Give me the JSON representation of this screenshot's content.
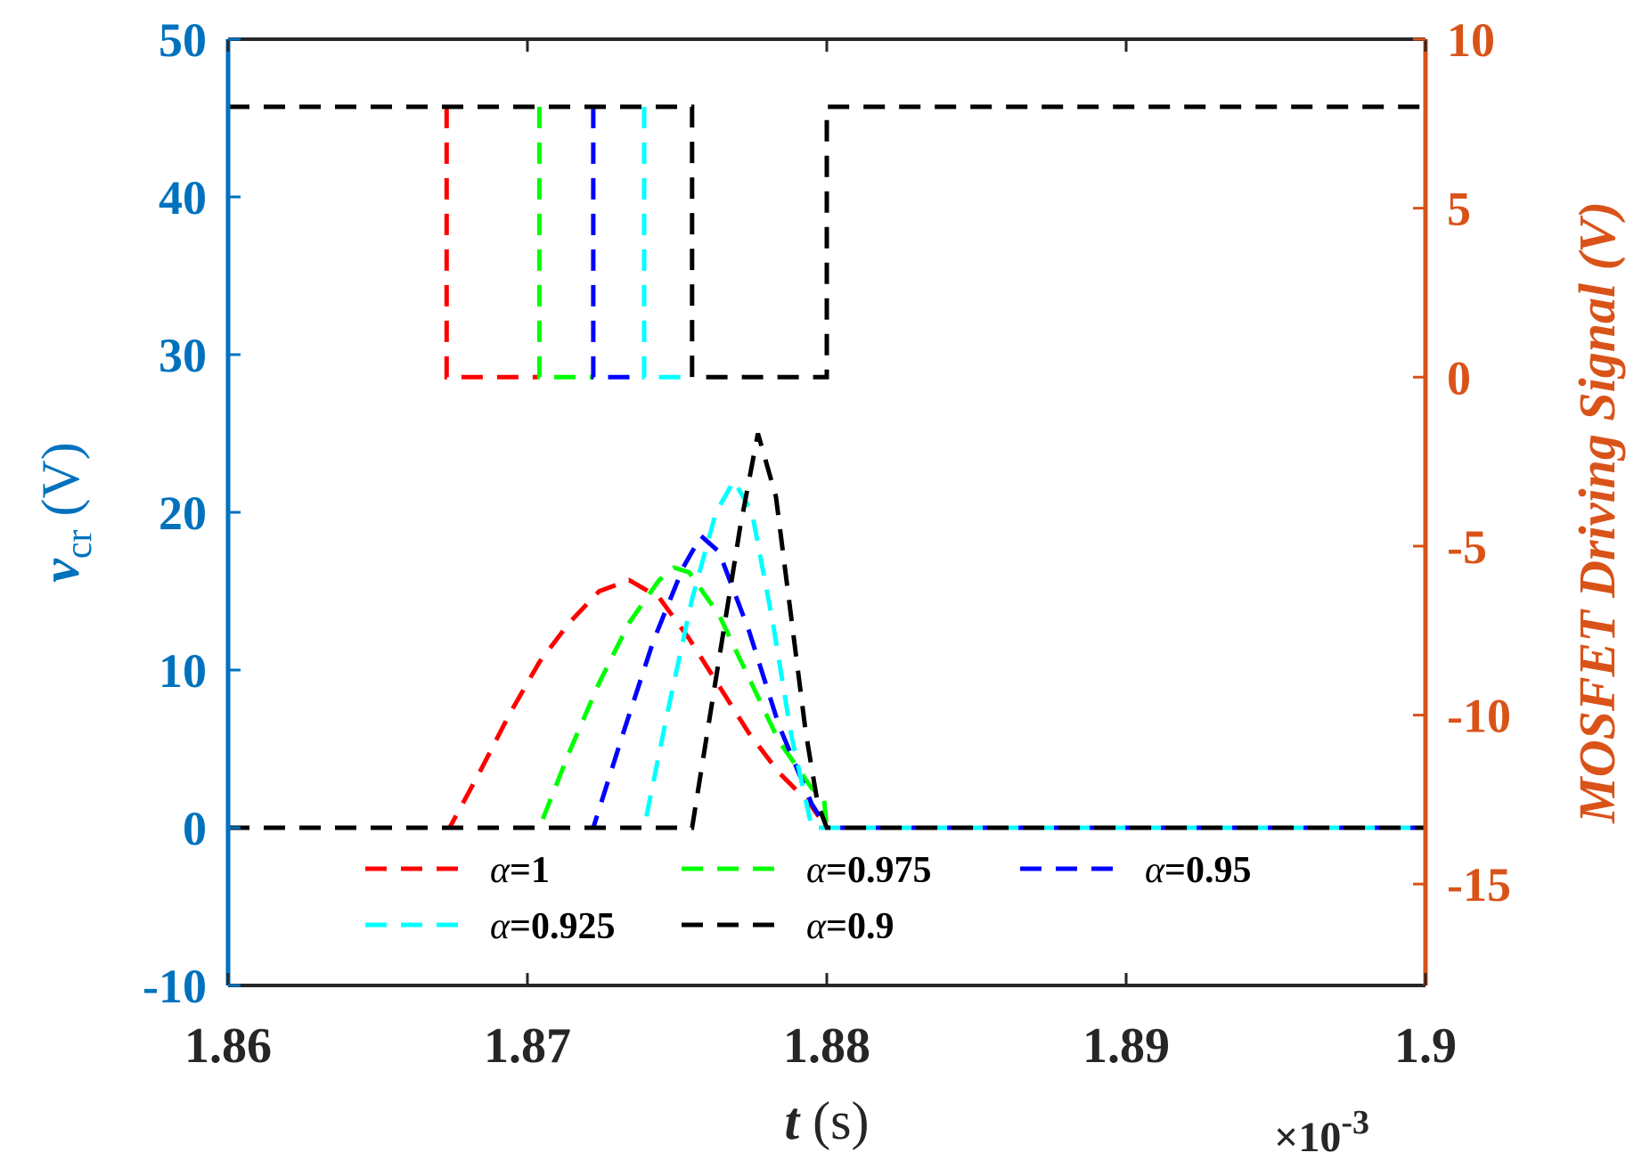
{
  "chart_data": {
    "type": "line",
    "x_axis": {
      "label_var": "t",
      "label_unit": " (s)",
      "range": [
        1.86,
        1.9
      ],
      "ticks": [
        1.86,
        1.87,
        1.88,
        1.89,
        1.9
      ],
      "tick_labels": [
        "1.86",
        "1.87",
        "1.88",
        "1.89",
        "1.9"
      ],
      "exponent_base": "×10",
      "exponent_power": "-3"
    },
    "y_left": {
      "label_var": "v",
      "label_sub": "cr",
      "label_unit": " (V)",
      "range": [
        -10,
        50
      ],
      "ticks": [
        -10,
        0,
        10,
        20,
        30,
        40,
        50
      ],
      "tick_labels": [
        "-10",
        "0",
        "10",
        "20",
        "30",
        "40",
        "50"
      ],
      "color": "#0072BD"
    },
    "y_right": {
      "label": "MOSFET Driving Signal (V)",
      "range": [
        -18,
        10
      ],
      "ticks": [
        -15,
        -10,
        -5,
        0,
        5,
        10
      ],
      "tick_labels": [
        "-15",
        "-10",
        "-5",
        "0",
        "5",
        "10"
      ],
      "color": "#D95319"
    },
    "series": [
      {
        "name": "α=1",
        "alpha_value": "1",
        "color": "#FF0000",
        "vcr": {
          "x": [
            1.86,
            1.8674,
            1.8684,
            1.8694,
            1.8704,
            1.8714,
            1.8724,
            1.8734,
            1.8744,
            1.8754,
            1.8764,
            1.8774,
            1.8784,
            1.8794,
            1.88,
            1.9
          ],
          "y": [
            0,
            0,
            3.5,
            7.2,
            10.5,
            13.0,
            15.0,
            15.7,
            14.6,
            12.0,
            9.0,
            6.0,
            3.5,
            1.6,
            0,
            0
          ]
        },
        "drive": {
          "x": [
            1.8673,
            1.8673,
            1.8704
          ],
          "y": [
            8,
            0,
            0
          ]
        }
      },
      {
        "name": "α=0.975",
        "alpha_value": "0.975",
        "color": "#00FF00",
        "vcr": {
          "x": [
            1.86,
            1.8704,
            1.8714,
            1.8724,
            1.8734,
            1.8744,
            1.8749,
            1.8754,
            1.8764,
            1.8774,
            1.8784,
            1.8795,
            1.8799,
            1.88,
            1.9
          ],
          "y": [
            0,
            0,
            4.8,
            9.2,
            13.0,
            15.7,
            16.5,
            16.2,
            13.5,
            9.5,
            5.5,
            2.5,
            2.0,
            0,
            0
          ]
        },
        "drive": {
          "x": [
            1.8704,
            1.8704,
            1.8722
          ],
          "y": [
            8,
            0,
            0
          ]
        }
      },
      {
        "name": "α=0.95",
        "alpha_value": "0.95",
        "color": "#0000FF",
        "vcr": {
          "x": [
            1.86,
            1.8722,
            1.8732,
            1.8742,
            1.8752,
            1.8758,
            1.8764,
            1.8774,
            1.8784,
            1.8795,
            1.88,
            1.9
          ],
          "y": [
            0,
            0,
            6.0,
            11.8,
            16.5,
            18.5,
            17.5,
            12.5,
            6.5,
            1.5,
            0,
            0
          ]
        },
        "drive": {
          "x": [
            1.8722,
            1.8722,
            1.8739
          ],
          "y": [
            8,
            0,
            0
          ]
        }
      },
      {
        "name": "α=0.925",
        "alpha_value": "0.925",
        "color": "#00FFFF",
        "vcr": {
          "x": [
            1.86,
            1.8739,
            1.8747,
            1.8755,
            1.8763,
            1.8769,
            1.8775,
            1.8782,
            1.8788,
            1.8795,
            1.9
          ],
          "y": [
            0,
            0,
            7.5,
            14.5,
            20.0,
            22.0,
            20.0,
            13.0,
            6.0,
            0,
            0
          ]
        },
        "drive": {
          "x": [
            1.8739,
            1.8739,
            1.8755
          ],
          "y": [
            8,
            0,
            0
          ]
        }
      },
      {
        "name": "α=0.9",
        "alpha_value": "0.9",
        "color": "#000000",
        "vcr": {
          "x": [
            1.86,
            1.8755,
            1.8763,
            1.8771,
            1.8777,
            1.8783,
            1.8788,
            1.8793,
            1.8797,
            1.88,
            1.9
          ],
          "y": [
            0,
            0,
            9.5,
            19.0,
            25.0,
            21.0,
            13.5,
            6.0,
            1.5,
            0,
            0
          ]
        },
        "drive": {
          "x": [
            1.86,
            1.8755,
            1.8755,
            1.88,
            1.88,
            1.9
          ],
          "y": [
            8,
            8,
            0,
            0,
            8,
            8
          ]
        }
      }
    ],
    "legend_location": "lower-center"
  }
}
